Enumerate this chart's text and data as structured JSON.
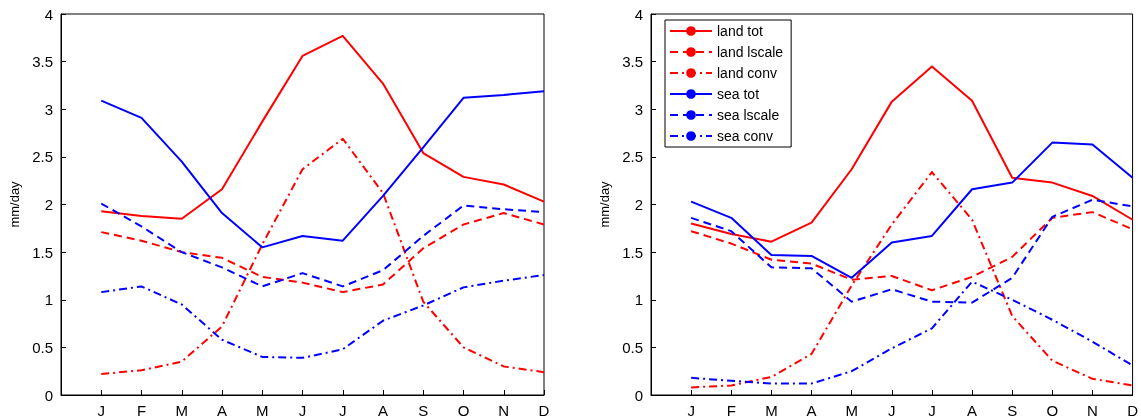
{
  "chart_data": [
    {
      "type": "line",
      "ylabel": "mm/day",
      "categories": [
        null,
        "J",
        "F",
        "M",
        "A",
        "M",
        "J",
        "J",
        "A",
        "S",
        "O",
        "N",
        "D"
      ],
      "ylim": [
        0,
        4
      ],
      "yticks": [
        0,
        0.5,
        1,
        1.5,
        2,
        2.5,
        3,
        3.5,
        4
      ],
      "grid": false,
      "legend": false,
      "series": [
        {
          "color": "#ff0000",
          "line_style": "solid",
          "values": [
            null,
            1.93,
            1.88,
            1.85,
            2.16,
            2.87,
            3.56,
            3.77,
            3.27,
            2.54,
            2.29,
            2.21,
            2.03
          ]
        },
        {
          "color": "#ff0000",
          "line_style": "dashed",
          "values": [
            null,
            1.71,
            1.62,
            1.5,
            1.44,
            1.24,
            1.18,
            1.08,
            1.16,
            1.54,
            1.79,
            1.91,
            1.79
          ]
        },
        {
          "color": "#ff0000",
          "line_style": "dashdot",
          "values": [
            null,
            0.22,
            0.26,
            0.35,
            0.72,
            1.58,
            2.37,
            2.69,
            2.12,
            0.98,
            0.5,
            0.3,
            0.24
          ]
        },
        {
          "color": "#0000ff",
          "line_style": "solid",
          "values": [
            null,
            3.09,
            2.91,
            2.45,
            1.91,
            1.55,
            1.67,
            1.62,
            2.09,
            2.6,
            3.12,
            3.15,
            3.19
          ]
        },
        {
          "color": "#0000ff",
          "line_style": "dashed",
          "values": [
            null,
            2.01,
            1.77,
            1.5,
            1.34,
            1.14,
            1.28,
            1.14,
            1.31,
            1.67,
            1.99,
            1.95,
            1.92
          ]
        },
        {
          "color": "#0000ff",
          "line_style": "dashdot",
          "values": [
            null,
            1.08,
            1.14,
            0.95,
            0.58,
            0.4,
            0.39,
            0.48,
            0.78,
            0.94,
            1.13,
            1.2,
            1.26
          ]
        }
      ]
    },
    {
      "type": "line",
      "ylabel": "mm/day",
      "categories": [
        null,
        "J",
        "F",
        "M",
        "A",
        "M",
        "J",
        "J",
        "A",
        "S",
        "O",
        "N",
        "D"
      ],
      "ylim": [
        0,
        4
      ],
      "yticks": [
        0,
        0.5,
        1,
        1.5,
        2,
        2.5,
        3,
        3.5,
        4
      ],
      "grid": false,
      "legend": "top left",
      "series": [
        {
          "name": "land tot",
          "color": "#ff0000",
          "line_style": "solid",
          "values": [
            null,
            1.8,
            1.69,
            1.61,
            1.81,
            2.37,
            3.08,
            3.45,
            3.09,
            2.28,
            2.23,
            2.09,
            1.84
          ]
        },
        {
          "name": "land lscale",
          "color": "#ff0000",
          "line_style": "dashed",
          "values": [
            null,
            1.72,
            1.59,
            1.42,
            1.38,
            1.21,
            1.25,
            1.1,
            1.24,
            1.45,
            1.86,
            1.92,
            1.74
          ]
        },
        {
          "name": "land conv",
          "color": "#ff0000",
          "line_style": "dashdot",
          "values": [
            null,
            0.08,
            0.1,
            0.19,
            0.43,
            1.15,
            1.79,
            2.34,
            1.84,
            0.83,
            0.36,
            0.17,
            0.1
          ]
        },
        {
          "name": "sea tot",
          "color": "#0000ff",
          "line_style": "solid",
          "values": [
            null,
            2.03,
            1.86,
            1.47,
            1.46,
            1.23,
            1.6,
            1.67,
            2.16,
            2.23,
            2.65,
            2.63,
            2.28
          ]
        },
        {
          "name": "sea lscale",
          "color": "#0000ff",
          "line_style": "dashed",
          "values": [
            null,
            1.86,
            1.72,
            1.34,
            1.33,
            0.98,
            1.11,
            0.98,
            0.97,
            1.23,
            1.87,
            2.05,
            1.98
          ]
        },
        {
          "name": "sea conv",
          "color": "#0000ff",
          "line_style": "dashdot",
          "values": [
            null,
            0.18,
            0.15,
            0.12,
            0.12,
            0.25,
            0.49,
            0.7,
            1.19,
            1,
            0.79,
            0.56,
            0.31
          ]
        }
      ]
    }
  ]
}
